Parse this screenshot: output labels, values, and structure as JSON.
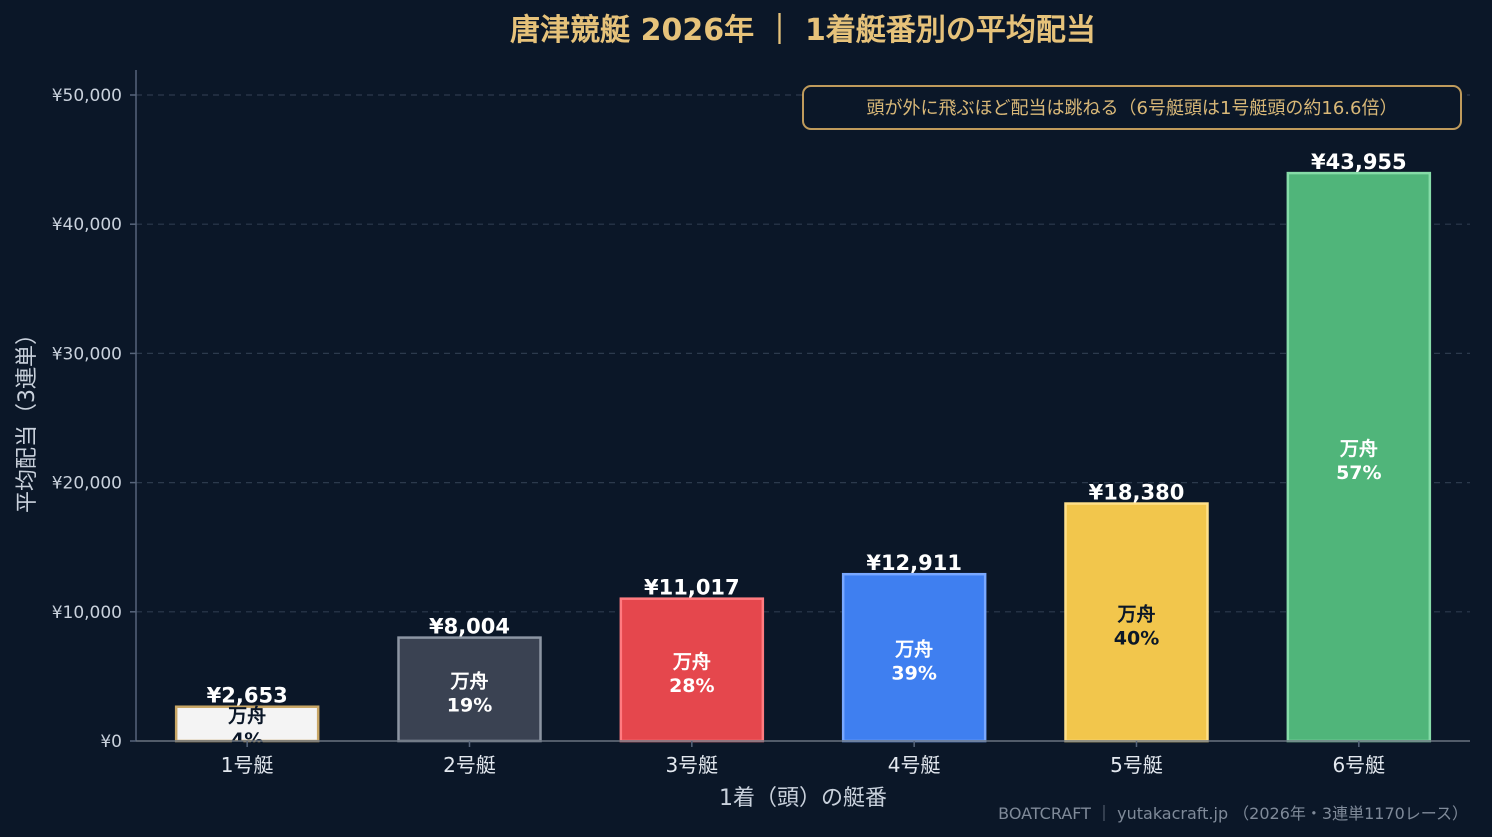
{
  "chart_data": {
    "type": "bar",
    "title": "唐津競艇 2026年 ｜ 1着艇番別の平均配当",
    "xlabel": "1着（頭）の艇番",
    "ylabel": "平均配当（3連単）",
    "categories": [
      "1号艇",
      "2号艇",
      "3号艇",
      "4号艇",
      "5号艇",
      "6号艇"
    ],
    "values": [
      2653,
      8004,
      11017,
      12911,
      18380,
      43955
    ],
    "value_labels": [
      "¥2,653",
      "¥8,004",
      "¥11,017",
      "¥12,911",
      "¥18,380",
      "¥43,955"
    ],
    "inner_label": "万舟",
    "manshu_percent_labels": [
      "4%",
      "19%",
      "28%",
      "39%",
      "40%",
      "57%"
    ],
    "bar_colors": [
      "#f4f4f4",
      "#3a4252",
      "#e5474d",
      "#3f7ff0",
      "#f2c64c",
      "#50b57a"
    ],
    "bar_edge_colors": [
      "#c8a665",
      "#8c95a3",
      "#ff7b80",
      "#79a8ff",
      "#ffe08a",
      "#86dca8"
    ],
    "inner_text_colors": [
      "#0b1728",
      "#ffffff",
      "#ffffff",
      "#ffffff",
      "#0b1728",
      "#ffffff"
    ],
    "ylim": [
      0,
      52000
    ],
    "yticks": [
      0,
      10000,
      20000,
      30000,
      40000,
      50000
    ],
    "ytick_labels": [
      "¥0",
      "¥10,000",
      "¥20,000",
      "¥30,000",
      "¥40,000",
      "¥50,000"
    ],
    "grid": true,
    "annotation": "頭が外に飛ぶほど配当は跳ねる（6号艇頭は1号艇頭の約16.6倍）",
    "annotation_placement": "top-right",
    "footer": "BOATCRAFT ｜ yutakacraft.jp （2026年・3連単1170レース）",
    "colors": {
      "background": "#0b1728",
      "title": "#e6c27a",
      "grid": "#2c3a4d",
      "axis": "#56647a",
      "annotation_border": "#bf9b5c"
    }
  }
}
